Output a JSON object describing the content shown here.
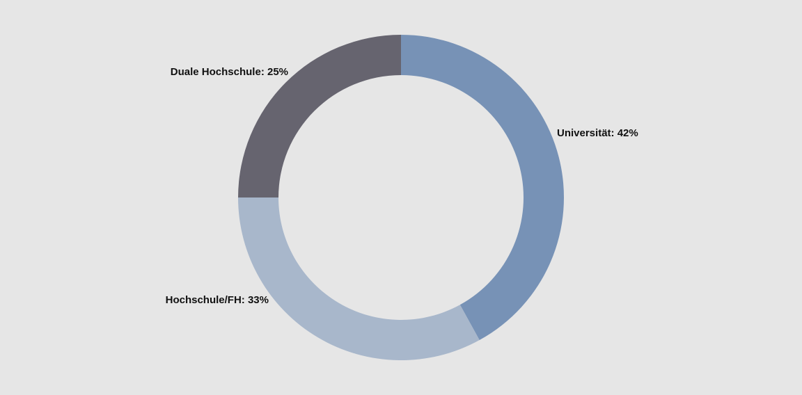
{
  "chart_data": {
    "type": "donut",
    "values": [
      42,
      33,
      25
    ],
    "value_labels": [
      "Universität: 42%",
      "Hochschule/FH: 33%",
      "Duale Hochschule: 25%"
    ],
    "colors": [
      "#7792b6",
      "#a8b7cb",
      "#66646f"
    ]
  }
}
